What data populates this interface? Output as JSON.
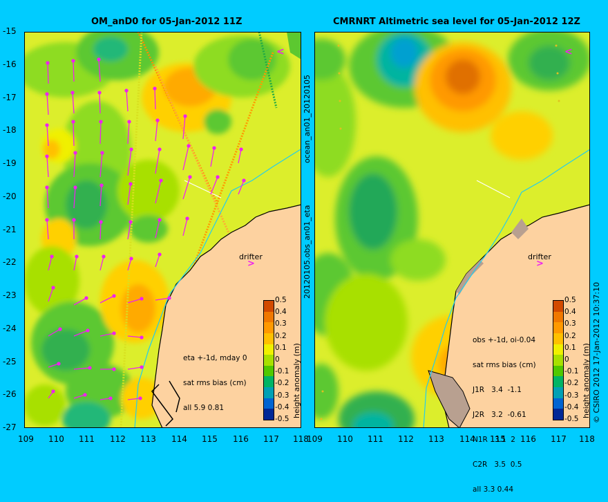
{
  "panels": [
    {
      "title": "OM_anD0 for 05-Jan-2012 11Z",
      "annotation": [
        "eta +-1d, mday 0",
        "sat rms bias (cm)",
        "all 5.9 0.81"
      ],
      "drifter_label": "drifter"
    },
    {
      "title": "CMRNRT Altimetric sea level  for 05-Jan-2012 12Z",
      "annotation": [
        "obs +-1d, oi-0.04",
        "sat rms bias (cm)",
        "J1R   3.4  -1.1",
        "J2R   3.2  -0.61",
        "N1R   3.1  2",
        "C2R   3.5  0.5",
        "all 3.3 0.44"
      ],
      "drifter_label": "drifter"
    }
  ],
  "axes": {
    "x_ticks": [
      "109",
      "110",
      "111",
      "112",
      "113",
      "114",
      "115",
      "116",
      "117",
      "118"
    ],
    "y_ticks": [
      "-15",
      "-16",
      "-17",
      "-18",
      "-19",
      "-20",
      "-21",
      "-22",
      "-23",
      "-24",
      "-25",
      "-26",
      "-27"
    ],
    "lon_range": [
      109,
      118
    ],
    "lat_range": [
      -27,
      -15
    ]
  },
  "colorbar": {
    "label": "height anomaly (m)",
    "ticks": [
      "0.5",
      "0.4",
      "0.3",
      "0.2",
      "0.1",
      "0",
      "-0.1",
      "-0.2",
      "-0.3",
      "-0.4",
      "-0.5"
    ],
    "colors": [
      "#d24a00",
      "#f07800",
      "#ff9900",
      "#ffc000",
      "#f0f000",
      "#a8e000",
      "#50c800",
      "#00b464",
      "#00a0b4",
      "#0064d2",
      "#002896"
    ]
  },
  "side_labels": {
    "middle_top": "ocean_an01_20120105",
    "middle_bottom": "20120105.obs_an01_eta",
    "right": "© CSIRO 2012  17-Jan-2012 10:37:10"
  },
  "colors": {
    "background": "#00ccff",
    "land": "#fdd2a0",
    "ocean_base": "#dcee2c",
    "vector": "#ee22ee"
  }
}
